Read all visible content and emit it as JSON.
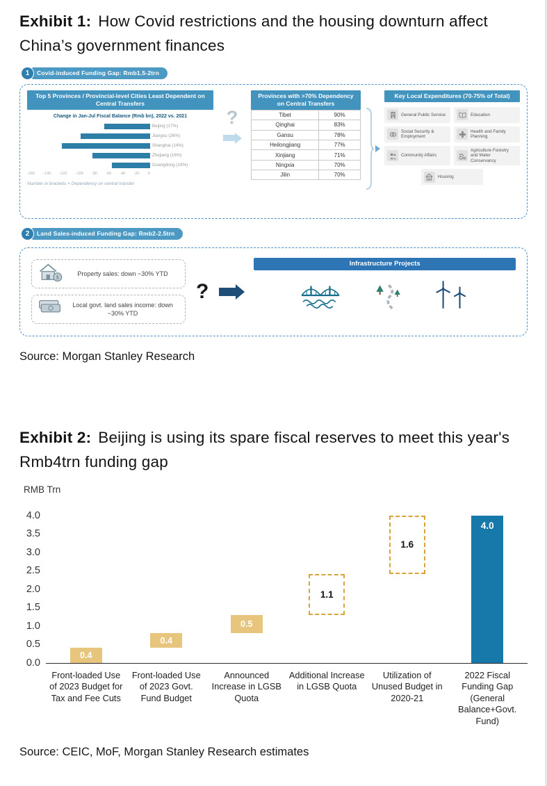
{
  "exhibit1": {
    "label": "Exhibit 1:",
    "title": "How Covid restrictions and the housing downturn affect China’s government finances",
    "badge": {
      "number": "1",
      "text": "Covid-induced Funding Gap: Rmb1.5-2trn"
    },
    "provinces_panel": {
      "header": "Top 5 Provinces / Provincial-level Cities Least Dependent on Central Transfers",
      "chart_title": "Change in Jan-Jul Fiscal Balance (Rmb bn), 2022 vs. 2021",
      "rows": [
        {
          "label": "Beijing (17%)",
          "value": 60
        },
        {
          "label": "Jiangsu (26%)",
          "value": 90
        },
        {
          "label": "Shanghai (14%)",
          "value": 115
        },
        {
          "label": "Zhejiang (16%)",
          "value": 75
        },
        {
          "label": "Guangdong (19%)",
          "value": 50
        }
      ],
      "axis_max": 160,
      "axis_ticks": [
        "-160",
        "-140",
        "-120",
        "-100",
        "-80",
        "-60",
        "-40",
        "-20",
        "0"
      ],
      "footnote": "Number in brackets = Dependency on central transfer"
    },
    "question_mark": "?",
    "dependency_table": {
      "header": "Provinces with >70% Dependency on Central Transfers",
      "rows": [
        {
          "name": "Tibet",
          "value": "90%"
        },
        {
          "name": "Qinghai",
          "value": "83%"
        },
        {
          "name": "Gansu",
          "value": "78%"
        },
        {
          "name": "Heilongjiang",
          "value": "77%"
        },
        {
          "name": "Xinjiang",
          "value": "71%"
        },
        {
          "name": "Ningxia",
          "value": "70%"
        },
        {
          "name": "Jilin",
          "value": "70%"
        }
      ]
    },
    "expenditures_panel": {
      "header": "Key Local Expenditures (70-75% of Total)",
      "items": [
        {
          "label": "General Public Service",
          "icon": "building-icon"
        },
        {
          "label": "Education",
          "icon": "book-icon"
        },
        {
          "label": "Social Security & Employment",
          "icon": "coins-icon"
        },
        {
          "label": "Health and Family Planning",
          "icon": "medical-cross-icon"
        },
        {
          "label": "Community Affairs",
          "icon": "people-icon"
        },
        {
          "label": "Agriculture Forestry and Water Conservancy",
          "icon": "tractor-icon"
        },
        {
          "label": "Housing",
          "icon": "house-icon"
        }
      ]
    },
    "badge2": {
      "number": "2",
      "text": "Land Sales-induced Funding Gap: Rmb2-2.5trn"
    },
    "land_sales": {
      "items": [
        {
          "label": "Property sales: down ~30% YTD",
          "icon": "house-coin-icon"
        },
        {
          "label": "Local govt. land sales income: down ~30% YTD",
          "icon": "banknotes-icon"
        }
      ],
      "question_mark": "?",
      "infra_header": "Infrastructure Projects",
      "infra_icons": [
        "bridge-icon",
        "trees-road-icon",
        "wind-turbines-icon"
      ]
    },
    "source": "Source: Morgan Stanley Research"
  },
  "exhibit2": {
    "label": "Exhibit 2:",
    "title": "Beijing is using its spare fiscal reserves to meet this year's Rmb4trn funding gap",
    "source": "Source: CEIC, MoF, Morgan Stanley Research estimates"
  },
  "chart_data": {
    "type": "bar",
    "subtype": "waterfall",
    "title": "Beijing is using its spare fiscal reserves to meet this year's Rmb4trn funding gap",
    "ylabel": "RMB Trn",
    "ylim": [
      0,
      4.0
    ],
    "yticks": [
      4.0,
      3.5,
      3.0,
      2.5,
      2.0,
      1.5,
      1.0,
      0.5,
      0.0
    ],
    "grid": false,
    "categories": [
      "Front-loaded Use of 2023 Budget for Tax and Fee Cuts",
      "Front-loaded Use of 2023 Govt. Fund Budget",
      "Announced Increase in LGSB Quota",
      "Additional Increase in LGSB Quota",
      "Utilization of Unused Budget in 2020-21",
      "2022 Fiscal Funding Gap (General Balance+Govt. Fund)"
    ],
    "values": [
      0.4,
      0.4,
      0.5,
      1.1,
      1.6,
      4.0
    ],
    "starts": [
      0,
      0.4,
      0.8,
      1.3,
      2.4,
      0
    ],
    "bar_styles": [
      "solid-tan",
      "solid-tan",
      "solid-tan",
      "dashed-outline",
      "dashed-outline",
      "solid-blue"
    ],
    "data_labels": [
      "0.4",
      "0.4",
      "0.5",
      "1.1",
      "1.6",
      "4.0"
    ],
    "colors": {
      "tan": "#E8C57D",
      "dashed_border": "#D9A437",
      "blue": "#1779A9"
    }
  }
}
